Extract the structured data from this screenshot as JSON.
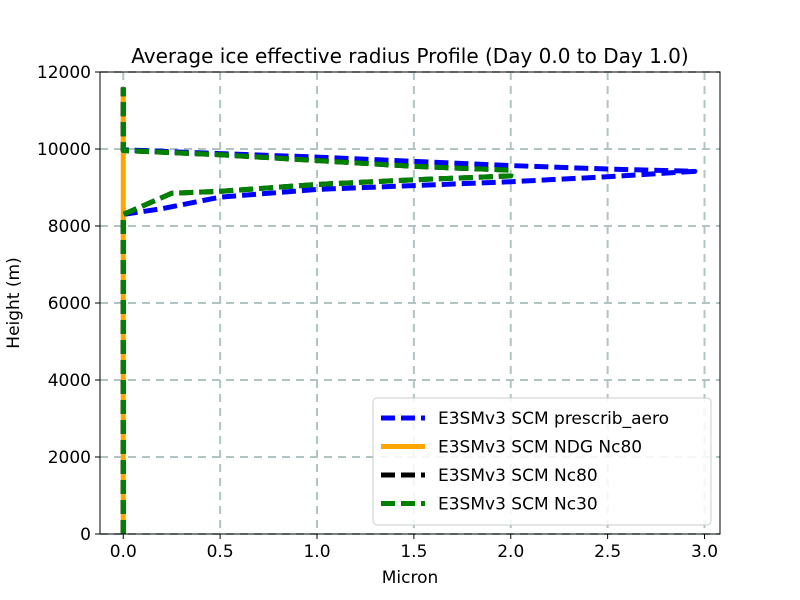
{
  "chart_data": {
    "type": "line",
    "title": "Average ice effective radius Profile (Day 0.0 to Day 1.0)",
    "xlabel": "Micron",
    "ylabel": "Height (m)",
    "xlim": [
      -0.12,
      3.08
    ],
    "ylim": [
      0,
      12000
    ],
    "xticks": [
      0.0,
      0.5,
      1.0,
      1.5,
      2.0,
      2.5,
      3.0
    ],
    "xtick_labels": [
      "0.0",
      "0.5",
      "1.0",
      "1.5",
      "2.0",
      "2.5",
      "3.0"
    ],
    "yticks": [
      0,
      2000,
      4000,
      6000,
      8000,
      10000,
      12000
    ],
    "ytick_labels": [
      "0",
      "2000",
      "4000",
      "6000",
      "8000",
      "10000",
      "12000"
    ],
    "grid": true,
    "legend_position": "lower-right",
    "series": [
      {
        "name": "E3SMv3 SCM prescrib_aero",
        "color": "#0000ff",
        "style": "dashed",
        "points": [
          [
            0,
            0
          ],
          [
            0,
            8200
          ],
          [
            0,
            8300
          ],
          [
            0.2,
            8450
          ],
          [
            0.5,
            8750
          ],
          [
            1.0,
            8950
          ],
          [
            1.5,
            9050
          ],
          [
            2.0,
            9150
          ],
          [
            2.5,
            9280
          ],
          [
            2.95,
            9420
          ],
          [
            2.5,
            9480
          ],
          [
            2.0,
            9570
          ],
          [
            1.5,
            9680
          ],
          [
            1.0,
            9790
          ],
          [
            0.5,
            9880
          ],
          [
            0.2,
            9940
          ],
          [
            0,
            9980
          ],
          [
            0,
            11600
          ]
        ]
      },
      {
        "name": "E3SMv3 SCM NDG Nc80",
        "color": "#ffa500",
        "style": "solid",
        "points": [
          [
            0,
            0
          ],
          [
            0,
            11600
          ]
        ]
      },
      {
        "name": "E3SMv3 SCM Nc80",
        "color": "#000000",
        "style": "dashed",
        "points": [
          [
            0,
            0
          ],
          [
            0,
            8200
          ],
          [
            0,
            8300
          ],
          [
            0.25,
            8850
          ],
          [
            0.5,
            8900
          ],
          [
            1.0,
            9080
          ],
          [
            1.5,
            9200
          ],
          [
            2.0,
            9300
          ],
          [
            2.0,
            9450
          ],
          [
            1.5,
            9550
          ],
          [
            1.0,
            9700
          ],
          [
            0.5,
            9850
          ],
          [
            0,
            9960
          ],
          [
            0,
            11600
          ]
        ]
      },
      {
        "name": "E3SMv3 SCM Nc30",
        "color": "#008000",
        "style": "dashed",
        "points": [
          [
            0,
            0
          ],
          [
            0,
            8200
          ],
          [
            0,
            8300
          ],
          [
            0.25,
            8850
          ],
          [
            0.5,
            8900
          ],
          [
            1.0,
            9080
          ],
          [
            1.5,
            9200
          ],
          [
            2.0,
            9300
          ],
          [
            2.0,
            9450
          ],
          [
            1.5,
            9550
          ],
          [
            1.0,
            9700
          ],
          [
            0.5,
            9850
          ],
          [
            0,
            9960
          ],
          [
            0,
            11600
          ]
        ]
      }
    ]
  }
}
